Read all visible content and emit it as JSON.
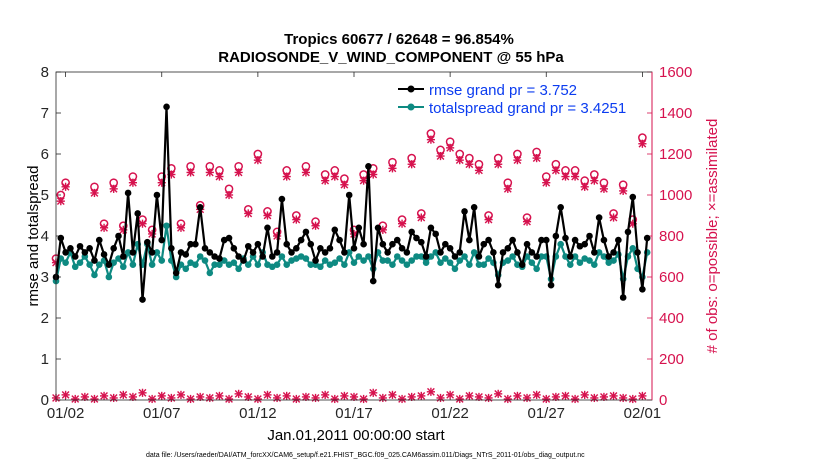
{
  "chart_data": {
    "type": "line",
    "title": "Tropics 60677 / 62648 = 96.854%",
    "subtitle": "RADIOSONDE_V_WIND_COMPONENT @ 55 hPa",
    "xlabel": "Jan.01,2011 00:00:00 start",
    "ylabel_left": "rmse and totalspread",
    "ylabel_right": "# of obs: o=possible; ×=assimilated",
    "ylim_left": [
      0,
      8
    ],
    "ylim_right": [
      0,
      1600
    ],
    "yticks_left": [
      "0",
      "1",
      "2",
      "3",
      "4",
      "5",
      "6",
      "7",
      "8"
    ],
    "yticks_right": [
      "0",
      "200",
      "400",
      "600",
      "800",
      "1000",
      "1200",
      "1400",
      "1600"
    ],
    "x_range_days": [
      0.5,
      31.5
    ],
    "xticks": [
      {
        "label": "01/02",
        "day": 1
      },
      {
        "label": "01/07",
        "day": 6
      },
      {
        "label": "01/12",
        "day": 11
      },
      {
        "label": "01/17",
        "day": 16
      },
      {
        "label": "01/22",
        "day": 21
      },
      {
        "label": "01/27",
        "day": 26
      },
      {
        "label": "02/01",
        "day": 31
      }
    ],
    "footnote": "data file: /Users/raeder/DAI/ATM_forcXX/CAM6_setup/f.e21.FHIST_BGC.f09_025.CAM6assim.011/Diags_NTrS_2011-01/obs_diag_output.nc",
    "legend": [
      {
        "name": "rmse grand pr = 3.752",
        "series": "rmse"
      },
      {
        "name": "totalspread grand pr = 3.4251",
        "series": "totalspread"
      }
    ],
    "colors": {
      "rmse": "#000000",
      "totalspread": "#0e8a82",
      "obs": "#d6124e",
      "axis_right": "#d6124e",
      "legend_text": "#0b3cf0"
    },
    "step_days": 0.25,
    "start_day": 0.5,
    "series": [
      {
        "name": "rmse",
        "axis": "left",
        "values": [
          3.0,
          3.95,
          3.6,
          3.7,
          3.5,
          3.75,
          3.6,
          3.7,
          3.4,
          3.9,
          3.55,
          3.3,
          3.7,
          4.0,
          3.5,
          5.05,
          3.6,
          4.55,
          2.45,
          3.85,
          3.6,
          5.0,
          3.9,
          7.15,
          3.7,
          3.1,
          3.6,
          3.55,
          3.8,
          3.8,
          4.7,
          3.7,
          3.6,
          3.5,
          3.45,
          3.9,
          3.95,
          3.7,
          3.5,
          3.4,
          3.75,
          3.6,
          3.8,
          3.5,
          4.2,
          3.5,
          3.6,
          4.9,
          3.8,
          3.6,
          3.7,
          3.9,
          4.1,
          3.8,
          3.4,
          3.7,
          3.6,
          3.7,
          4.15,
          3.9,
          3.6,
          5.0,
          3.7,
          4.2,
          3.8,
          5.7,
          2.9,
          4.2,
          3.8,
          3.6,
          3.8,
          3.9,
          3.7,
          3.6,
          4.1,
          3.95,
          3.85,
          3.5,
          4.2,
          4.05,
          3.6,
          3.8,
          3.7,
          3.5,
          3.6,
          4.6,
          3.9,
          4.7,
          3.5,
          3.8,
          3.9,
          3.6,
          2.8,
          3.6,
          3.7,
          3.9,
          3.6,
          3.3,
          3.8,
          3.6,
          3.5,
          3.9,
          3.9,
          2.8,
          4.0,
          4.7,
          3.95,
          3.5,
          3.9,
          3.75,
          3.8,
          4.0,
          3.6,
          4.45,
          3.9,
          3.5,
          3.6,
          3.9,
          2.5,
          4.1,
          4.95,
          3.6,
          2.7,
          3.95
        ]
      },
      {
        "name": "totalspread",
        "axis": "left",
        "values": [
          2.9,
          3.45,
          3.35,
          3.6,
          3.25,
          3.35,
          3.5,
          3.3,
          3.05,
          3.3,
          3.4,
          3.0,
          3.35,
          3.45,
          3.25,
          3.6,
          3.3,
          3.8,
          3.3,
          3.8,
          3.3,
          3.6,
          3.4,
          4.25,
          3.4,
          3.0,
          3.3,
          3.2,
          3.35,
          3.3,
          3.5,
          3.4,
          3.1,
          3.3,
          3.3,
          3.4,
          3.3,
          3.35,
          3.2,
          3.45,
          3.3,
          3.5,
          3.3,
          3.6,
          3.3,
          3.25,
          3.3,
          3.5,
          3.3,
          3.4,
          3.45,
          3.5,
          3.45,
          3.3,
          3.3,
          3.25,
          3.4,
          3.3,
          3.35,
          3.45,
          3.3,
          3.6,
          3.35,
          3.5,
          3.4,
          3.5,
          3.2,
          3.6,
          3.4,
          3.4,
          3.3,
          3.5,
          3.4,
          3.3,
          3.4,
          3.5,
          3.5,
          3.35,
          3.5,
          3.6,
          3.35,
          3.45,
          3.35,
          3.2,
          3.4,
          3.5,
          3.3,
          3.6,
          3.3,
          3.3,
          3.45,
          3.35,
          3.05,
          3.35,
          3.4,
          3.5,
          3.3,
          3.25,
          3.5,
          3.35,
          3.2,
          3.5,
          3.5,
          2.95,
          3.5,
          3.8,
          3.5,
          3.3,
          3.5,
          3.35,
          3.45,
          3.4,
          3.3,
          3.6,
          3.5,
          3.35,
          3.4,
          3.55,
          2.95,
          3.5,
          3.7,
          3.2,
          3.0,
          3.6
        ]
      },
      {
        "name": "obs possible",
        "axis": "right",
        "marker": "o",
        "days": [
          0.5,
          0.75,
          1.0,
          2.5,
          3.0,
          3.5,
          4.0,
          4.5,
          5.0,
          5.5,
          6.0,
          6.5,
          7.0,
          7.5,
          8.0,
          8.5,
          9.0,
          9.5,
          10.0,
          10.5,
          11.0,
          11.5,
          12.0,
          12.5,
          13.0,
          13.5,
          14.0,
          14.5,
          15.0,
          15.5,
          16.0,
          16.5,
          17.0,
          17.5,
          18.0,
          18.5,
          19.0,
          19.5,
          20.0,
          20.5,
          21.0,
          21.5,
          22.0,
          22.5,
          23.0,
          23.5,
          24.0,
          24.5,
          25.0,
          25.5,
          26.0,
          26.5,
          27.0,
          27.5,
          28.0,
          28.5,
          29.0,
          29.5,
          30.0,
          30.5,
          31.0
        ],
        "values": [
          690,
          1000,
          1060,
          1040,
          860,
          1060,
          850,
          1090,
          880,
          830,
          1090,
          1130,
          860,
          1140,
          950,
          1140,
          1120,
          1030,
          1140,
          930,
          1200,
          920,
          820,
          1120,
          900,
          1140,
          870,
          1100,
          1120,
          1080,
          830,
          1100,
          1130,
          850,
          1160,
          880,
          1180,
          910,
          1300,
          1220,
          1260,
          1200,
          1180,
          1150,
          900,
          1180,
          1060,
          1200,
          890,
          1210,
          1090,
          1150,
          1120,
          1120,
          1070,
          1100,
          1060,
          910,
          1050,
          880,
          1280
        ]
      },
      {
        "name": "obs assimilated",
        "axis": "right",
        "marker": "x",
        "days": [
          0.5,
          0.75,
          1.0,
          2.5,
          3.0,
          3.5,
          4.0,
          4.5,
          5.0,
          5.5,
          6.0,
          6.5,
          7.0,
          7.5,
          8.0,
          8.5,
          9.0,
          9.5,
          10.0,
          10.5,
          11.0,
          11.5,
          12.0,
          12.5,
          13.0,
          13.5,
          14.0,
          14.5,
          15.0,
          15.5,
          16.0,
          16.5,
          17.0,
          17.5,
          18.0,
          18.5,
          19.0,
          19.5,
          20.0,
          20.5,
          21.0,
          21.5,
          22.0,
          22.5,
          23.0,
          23.5,
          24.0,
          24.5,
          25.0,
          25.5,
          26.0,
          26.5,
          27.0,
          27.5,
          28.0,
          28.5,
          29.0,
          29.5,
          30.0,
          30.5,
          31.0
        ],
        "values": [
          670,
          970,
          1040,
          1010,
          840,
          1030,
          830,
          1060,
          860,
          810,
          1060,
          1100,
          840,
          1110,
          930,
          1110,
          1090,
          1000,
          1110,
          910,
          1170,
          900,
          800,
          1090,
          880,
          1110,
          850,
          1070,
          1090,
          1050,
          810,
          1070,
          1100,
          830,
          1130,
          860,
          1150,
          890,
          1270,
          1190,
          1230,
          1170,
          1150,
          1120,
          880,
          1150,
          1030,
          1170,
          870,
          1180,
          1060,
          1120,
          1090,
          1090,
          1040,
          1070,
          1030,
          890,
          1020,
          860,
          1250
        ]
      },
      {
        "name": "obs baseline",
        "axis": "right",
        "marker": "x",
        "step_days": 0.5,
        "start_day": 0.5,
        "values": [
          10,
          25,
          5,
          15,
          5,
          20,
          10,
          25,
          15,
          35,
          5,
          20,
          10,
          25,
          5,
          15,
          10,
          20,
          5,
          30,
          15,
          5,
          25,
          10,
          20,
          5,
          15,
          10,
          25,
          5,
          20,
          15,
          5,
          35,
          10,
          25,
          5,
          15,
          20,
          40,
          10,
          25,
          5,
          20,
          15,
          10,
          30,
          5,
          20,
          10,
          25,
          5,
          15,
          20,
          5,
          25,
          10,
          15,
          20,
          10,
          5,
          20
        ]
      }
    ]
  }
}
